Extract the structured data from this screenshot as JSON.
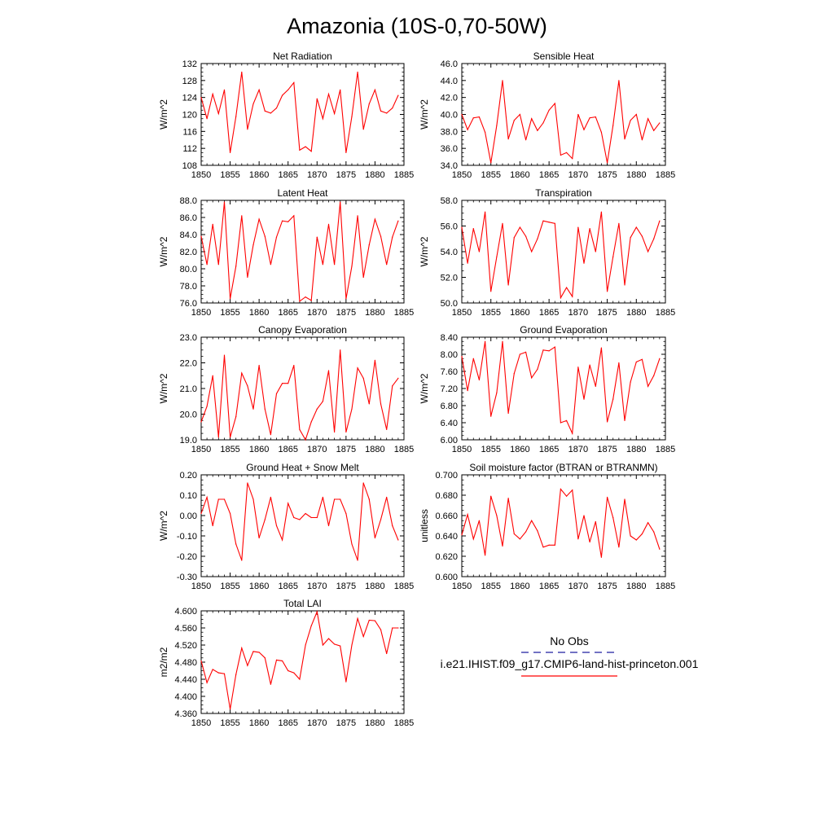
{
  "figure": {
    "title": "Amazonia (10S-0,70-50W)",
    "legend": {
      "entries": [
        {
          "label": "No Obs",
          "color": "#1f1fa0",
          "dash": true
        },
        {
          "label": "i.e21.IHIST.f09_g17.CMIP6-land-hist-princeton.001",
          "color": "#ff0000",
          "dash": false
        }
      ]
    },
    "line_color": "#ff0000"
  },
  "chart_data": [
    {
      "type": "line",
      "title": "Net Radiation",
      "ylabel": "W/m^2",
      "xlim": [
        1850,
        1885
      ],
      "ylim": [
        108,
        132
      ],
      "xticks": [
        "1850",
        "1855",
        "1860",
        "1865",
        "1870",
        "1875",
        "1880",
        "1885"
      ],
      "yticks": [
        "108",
        "112",
        "116",
        "120",
        "124",
        "128",
        "132"
      ],
      "x": [
        1850,
        1851,
        1852,
        1853,
        1854,
        1855,
        1856,
        1857,
        1858,
        1859,
        1860,
        1861,
        1862,
        1863,
        1864,
        1865,
        1866,
        1867,
        1868,
        1869,
        1870,
        1871,
        1872,
        1873,
        1874,
        1875,
        1876,
        1877,
        1878,
        1879,
        1880,
        1881,
        1882,
        1883,
        1884
      ],
      "y": [
        124,
        119,
        124.8,
        120.2,
        125.8,
        111,
        119.5,
        130,
        116.5,
        122.5,
        125.8,
        120.8,
        120.3,
        121.5,
        124.5,
        125.8,
        127.5,
        111.6,
        112.4,
        111.3,
        123.7,
        119,
        124.8,
        120.2,
        125.8,
        111,
        119.5,
        130,
        116.5,
        122.5,
        125.8,
        120.8,
        120.3,
        121.5,
        124.5
      ]
    },
    {
      "type": "line",
      "title": "Sensible Heat",
      "ylabel": "W/m^2",
      "xlim": [
        1850,
        1885
      ],
      "ylim": [
        34.0,
        46.0
      ],
      "xticks": [
        "1850",
        "1855",
        "1860",
        "1865",
        "1870",
        "1875",
        "1880",
        "1885"
      ],
      "yticks": [
        "34.0",
        "36.0",
        "38.0",
        "40.0",
        "42.0",
        "44.0",
        "46.0"
      ],
      "x": [
        1850,
        1851,
        1852,
        1853,
        1854,
        1855,
        1856,
        1857,
        1858,
        1859,
        1860,
        1861,
        1862,
        1863,
        1864,
        1865,
        1866,
        1867,
        1868,
        1869,
        1870,
        1871,
        1872,
        1873,
        1874,
        1875,
        1876,
        1877,
        1878,
        1879,
        1880,
        1881,
        1882,
        1883,
        1884
      ],
      "y": [
        40,
        38.2,
        39.6,
        39.7,
        37.9,
        34.3,
        38.7,
        44,
        37.1,
        39.3,
        40.0,
        37.0,
        39.5,
        38.1,
        39.0,
        40.5,
        41.3,
        35.2,
        35.5,
        34.8,
        40.0,
        38.2,
        39.6,
        39.7,
        37.9,
        34.3,
        38.7,
        44,
        37.1,
        39.3,
        40.0,
        37.0,
        39.5,
        38.1,
        39.0
      ]
    },
    {
      "type": "line",
      "title": "Latent Heat",
      "ylabel": "W/m^2",
      "xlim": [
        1850,
        1885
      ],
      "ylim": [
        76.0,
        88.0
      ],
      "xticks": [
        "1850",
        "1855",
        "1860",
        "1865",
        "1870",
        "1875",
        "1880",
        "1885"
      ],
      "yticks": [
        "76.0",
        "78.0",
        "80.0",
        "82.0",
        "84.0",
        "86.0",
        "88.0"
      ],
      "x": [
        1850,
        1851,
        1852,
        1853,
        1854,
        1855,
        1856,
        1857,
        1858,
        1859,
        1860,
        1861,
        1862,
        1863,
        1864,
        1865,
        1866,
        1867,
        1868,
        1869,
        1870,
        1871,
        1872,
        1873,
        1874,
        1875,
        1876,
        1877,
        1878,
        1879,
        1880,
        1881,
        1882,
        1883,
        1884
      ],
      "y": [
        83.8,
        80.5,
        85.2,
        80.5,
        87.8,
        76.5,
        80.3,
        86.2,
        79.0,
        82.8,
        85.8,
        83.8,
        80.5,
        83.7,
        85.6,
        85.5,
        86.2,
        76.2,
        76.7,
        76.3,
        83.7,
        80.5,
        85.2,
        80.5,
        87.8,
        76.5,
        80.3,
        86.2,
        79.0,
        82.8,
        85.8,
        83.8,
        80.5,
        83.7,
        85.6
      ]
    },
    {
      "type": "line",
      "title": "Transpiration",
      "ylabel": "W/m^2",
      "xlim": [
        1850,
        1885
      ],
      "ylim": [
        50.0,
        58.0
      ],
      "xticks": [
        "1850",
        "1855",
        "1860",
        "1865",
        "1870",
        "1875",
        "1880",
        "1885"
      ],
      "yticks": [
        "50.0",
        "52.0",
        "54.0",
        "56.0",
        "58.0"
      ],
      "x": [
        1850,
        1851,
        1852,
        1853,
        1854,
        1855,
        1856,
        1857,
        1858,
        1859,
        1860,
        1861,
        1862,
        1863,
        1864,
        1865,
        1866,
        1867,
        1868,
        1869,
        1870,
        1871,
        1872,
        1873,
        1874,
        1875,
        1876,
        1877,
        1878,
        1879,
        1880,
        1881,
        1882,
        1883,
        1884
      ],
      "y": [
        55.9,
        53.1,
        55.8,
        54.0,
        57.1,
        50.9,
        53.6,
        56.2,
        51.4,
        55.1,
        55.9,
        55.2,
        54.0,
        55.0,
        56.4,
        56.3,
        56.2,
        50.4,
        51.2,
        50.5,
        55.9,
        53.1,
        55.8,
        54.0,
        57.1,
        50.9,
        53.6,
        56.2,
        51.4,
        55.1,
        55.9,
        55.2,
        54.0,
        55.0,
        56.4
      ]
    },
    {
      "type": "line",
      "title": "Canopy Evaporation",
      "ylabel": "W/m^2",
      "xlim": [
        1850,
        1885
      ],
      "ylim": [
        19.0,
        23.0
      ],
      "xticks": [
        "1850",
        "1855",
        "1860",
        "1865",
        "1870",
        "1875",
        "1880",
        "1885"
      ],
      "yticks": [
        "19.0",
        "20.0",
        "21.0",
        "22.0",
        "23.0"
      ],
      "x": [
        1850,
        1851,
        1852,
        1853,
        1854,
        1855,
        1856,
        1857,
        1858,
        1859,
        1860,
        1861,
        1862,
        1863,
        1864,
        1865,
        1866,
        1867,
        1868,
        1869,
        1870,
        1871,
        1872,
        1873,
        1874,
        1875,
        1876,
        1877,
        1878,
        1879,
        1880,
        1881,
        1882,
        1883,
        1884
      ],
      "y": [
        19.7,
        20.3,
        21.5,
        19.1,
        22.3,
        19.1,
        19.9,
        21.6,
        21.1,
        20.2,
        21.9,
        20.2,
        19.2,
        20.8,
        21.2,
        21.2,
        21.9,
        19.4,
        19.0,
        19.7,
        20.2,
        20.5,
        21.7,
        19.3,
        22.5,
        19.3,
        20.2,
        21.8,
        21.4,
        20.4,
        22.1,
        20.4,
        19.4,
        21.1,
        21.4
      ]
    },
    {
      "type": "line",
      "title": "Ground Evaporation",
      "ylabel": "W/m^2",
      "xlim": [
        1850,
        1885
      ],
      "ylim": [
        6.0,
        8.4
      ],
      "xticks": [
        "1850",
        "1855",
        "1860",
        "1865",
        "1870",
        "1875",
        "1880",
        "1885"
      ],
      "yticks": [
        "6.00",
        "6.40",
        "6.80",
        "7.20",
        "7.60",
        "8.00",
        "8.40"
      ],
      "x": [
        1850,
        1851,
        1852,
        1853,
        1854,
        1855,
        1856,
        1857,
        1858,
        1859,
        1860,
        1861,
        1862,
        1863,
        1864,
        1865,
        1866,
        1867,
        1868,
        1869,
        1870,
        1871,
        1872,
        1873,
        1874,
        1875,
        1876,
        1877,
        1878,
        1879,
        1880,
        1881,
        1882,
        1883,
        1884
      ],
      "y": [
        7.95,
        7.15,
        7.9,
        7.4,
        8.3,
        6.55,
        7.1,
        8.3,
        6.62,
        7.55,
        8.0,
        8.05,
        7.45,
        7.65,
        8.1,
        8.08,
        8.17,
        6.4,
        6.45,
        6.15,
        7.7,
        6.95,
        7.75,
        7.25,
        8.15,
        6.42,
        6.95,
        7.8,
        6.45,
        7.35,
        7.82,
        7.88,
        7.25,
        7.5,
        7.9
      ]
    },
    {
      "type": "line",
      "title": "Ground Heat + Snow Melt",
      "ylabel": "W/m^2",
      "xlim": [
        1850,
        1885
      ],
      "ylim": [
        -0.3,
        0.2
      ],
      "xticks": [
        "1850",
        "1855",
        "1860",
        "1865",
        "1870",
        "1875",
        "1880",
        "1885"
      ],
      "yticks": [
        "-0.30",
        "-0.20",
        "-0.10",
        "0.00",
        "0.10",
        "0.20"
      ],
      "x": [
        1850,
        1851,
        1852,
        1853,
        1854,
        1855,
        1856,
        1857,
        1858,
        1859,
        1860,
        1861,
        1862,
        1863,
        1864,
        1865,
        1866,
        1867,
        1868,
        1869,
        1870,
        1871,
        1872,
        1873,
        1874,
        1875,
        1876,
        1877,
        1878,
        1879,
        1880,
        1881,
        1882,
        1883,
        1884
      ],
      "y": [
        0.01,
        0.09,
        -0.05,
        0.08,
        0.08,
        0.01,
        -0.14,
        -0.22,
        0.16,
        0.08,
        -0.11,
        -0.02,
        0.09,
        -0.05,
        -0.12,
        0.06,
        -0.01,
        -0.02,
        0.01,
        -0.01,
        -0.01,
        0.09,
        -0.05,
        0.08,
        0.08,
        0.01,
        -0.14,
        -0.22,
        0.16,
        0.08,
        -0.11,
        -0.02,
        0.09,
        -0.05,
        -0.12
      ]
    },
    {
      "type": "line",
      "title": "Soil moisture factor (BTRAN or BTRANMN)",
      "ylabel": "unitless",
      "xlim": [
        1850,
        1885
      ],
      "ylim": [
        0.6,
        0.7
      ],
      "xticks": [
        "1850",
        "1855",
        "1860",
        "1865",
        "1870",
        "1875",
        "1880",
        "1885"
      ],
      "yticks": [
        "0.600",
        "0.620",
        "0.640",
        "0.660",
        "0.680",
        "0.700"
      ],
      "x": [
        1850,
        1851,
        1852,
        1853,
        1854,
        1855,
        1856,
        1857,
        1858,
        1859,
        1860,
        1861,
        1862,
        1863,
        1864,
        1865,
        1866,
        1867,
        1868,
        1869,
        1870,
        1871,
        1872,
        1873,
        1874,
        1875,
        1876,
        1877,
        1878,
        1879,
        1880,
        1881,
        1882,
        1883,
        1884
      ],
      "y": [
        0.641,
        0.661,
        0.637,
        0.655,
        0.621,
        0.679,
        0.66,
        0.63,
        0.677,
        0.642,
        0.637,
        0.644,
        0.655,
        0.645,
        0.629,
        0.631,
        0.631,
        0.686,
        0.679,
        0.685,
        0.637,
        0.66,
        0.634,
        0.654,
        0.619,
        0.678,
        0.658,
        0.629,
        0.676,
        0.64,
        0.636,
        0.642,
        0.653,
        0.644,
        0.627
      ]
    },
    {
      "type": "line",
      "title": "Total LAI",
      "ylabel": "m2/m2",
      "xlim": [
        1850,
        1885
      ],
      "ylim": [
        4.36,
        4.6
      ],
      "xticks": [
        "1850",
        "1855",
        "1860",
        "1865",
        "1870",
        "1875",
        "1880",
        "1885"
      ],
      "yticks": [
        "4.360",
        "4.400",
        "4.440",
        "4.480",
        "4.520",
        "4.560",
        "4.600"
      ],
      "x": [
        1850,
        1851,
        1852,
        1853,
        1854,
        1855,
        1856,
        1857,
        1858,
        1859,
        1860,
        1861,
        1862,
        1863,
        1864,
        1865,
        1866,
        1867,
        1868,
        1869,
        1870,
        1871,
        1872,
        1873,
        1874,
        1875,
        1876,
        1877,
        1878,
        1879,
        1880,
        1881,
        1882,
        1883,
        1884
      ],
      "y": [
        4.483,
        4.432,
        4.463,
        4.455,
        4.453,
        4.37,
        4.451,
        4.513,
        4.472,
        4.505,
        4.503,
        4.49,
        4.428,
        4.485,
        4.483,
        4.46,
        4.455,
        4.44,
        4.52,
        4.565,
        4.598,
        4.52,
        4.535,
        4.522,
        4.518,
        4.434,
        4.52,
        4.582,
        4.54,
        4.578,
        4.577,
        4.556,
        4.5,
        4.56,
        4.56
      ]
    }
  ]
}
